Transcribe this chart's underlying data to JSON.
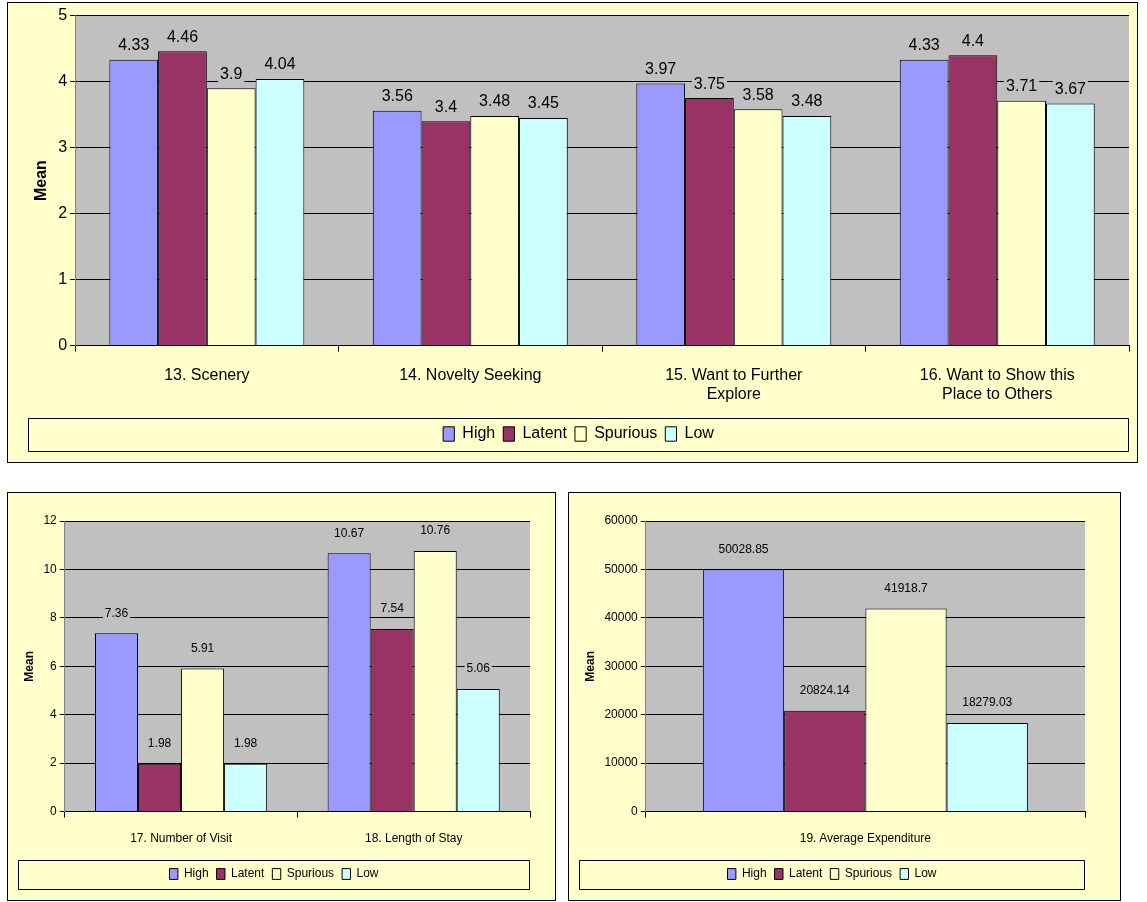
{
  "chart_data": [
    {
      "type": "bar",
      "categories": [
        "13. Scenery",
        "14. Novelty Seeking",
        "15. Want to Further Explore",
        "16. Want to Show this Place to Others"
      ],
      "ylabel": "Mean",
      "ylim": [
        0,
        5
      ],
      "yticks": [
        0,
        1,
        2,
        3,
        4,
        5
      ],
      "grid": "y",
      "legend": "bottom",
      "data_labels": true,
      "series": [
        {
          "name": "High",
          "color": "#9999ff",
          "values": [
            4.33,
            3.56,
            3.97,
            4.33
          ]
        },
        {
          "name": "Latent",
          "color": "#993366",
          "values": [
            4.46,
            3.4,
            3.75,
            4.4
          ]
        },
        {
          "name": "Spurious",
          "color": "#ffffcc",
          "values": [
            3.9,
            3.48,
            3.58,
            3.71
          ]
        },
        {
          "name": "Low",
          "color": "#ccffff",
          "values": [
            4.04,
            3.45,
            3.48,
            3.67
          ]
        }
      ]
    },
    {
      "type": "bar",
      "categories": [
        "17. Number of Visit",
        "18. Length of Stay"
      ],
      "ylabel": "Mean",
      "ylim": [
        0,
        12
      ],
      "yticks": [
        0,
        2,
        4,
        6,
        8,
        10,
        12
      ],
      "grid": "y",
      "legend": "bottom",
      "data_labels": true,
      "series": [
        {
          "name": "High",
          "color": "#9999ff",
          "values": [
            7.36,
            10.67
          ]
        },
        {
          "name": "Latent",
          "color": "#993366",
          "values": [
            1.98,
            7.54
          ]
        },
        {
          "name": "Spurious",
          "color": "#ffffcc",
          "values": [
            5.91,
            10.76
          ]
        },
        {
          "name": "Low",
          "color": "#ccffff",
          "values": [
            1.98,
            5.06
          ]
        }
      ]
    },
    {
      "type": "bar",
      "categories": [
        "19. Average Expenditure"
      ],
      "ylabel": "Mean",
      "ylim": [
        0,
        60000
      ],
      "yticks": [
        0,
        10000,
        20000,
        30000,
        40000,
        50000,
        60000
      ],
      "grid": "y",
      "legend": "bottom",
      "data_labels": true,
      "series": [
        {
          "name": "High",
          "color": "#9999ff",
          "values": [
            50028.85
          ]
        },
        {
          "name": "Latent",
          "color": "#993366",
          "values": [
            20824.14
          ]
        },
        {
          "name": "Spurious",
          "color": "#ffffcc",
          "values": [
            41918.7
          ]
        },
        {
          "name": "Low",
          "color": "#ccffff",
          "values": [
            18279.03
          ]
        }
      ]
    }
  ]
}
